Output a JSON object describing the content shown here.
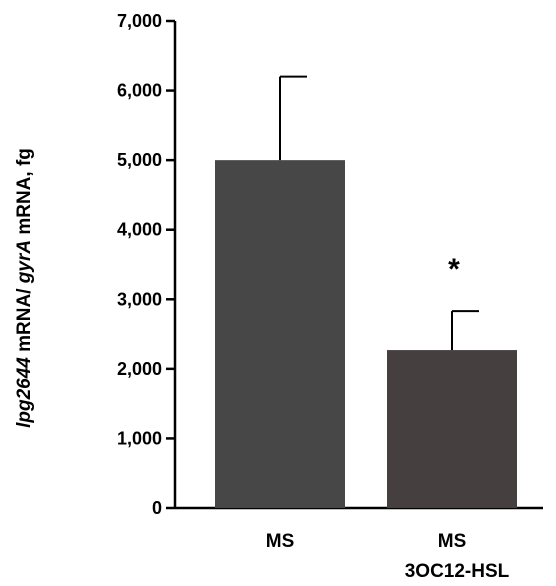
{
  "chart_data": {
    "type": "bar",
    "categories": [
      "MS",
      "MS 3OC12-HSL"
    ],
    "category_lines": [
      [
        "MS"
      ],
      [
        "MS",
        "3OC12-HSL"
      ]
    ],
    "values": [
      5000,
      2270
    ],
    "errors": [
      1200,
      560
    ],
    "significance": [
      "",
      "*"
    ],
    "ylim": [
      0,
      7000
    ],
    "yticks": [
      0,
      1000,
      2000,
      3000,
      4000,
      5000,
      6000,
      7000
    ],
    "ytick_labels": [
      "0",
      "1,000",
      "2,000",
      "3,000",
      "4,000",
      "5,000",
      "6,000",
      "7,000"
    ],
    "ylabel_parts": [
      {
        "text": "lpg2644",
        "italic": true
      },
      {
        "text": " mRNA/ ",
        "italic": false
      },
      {
        "text": "gyrA",
        "italic": true
      },
      {
        "text": " mRNA, fg",
        "italic": false
      }
    ],
    "xlabel": "",
    "title": "",
    "grid": false,
    "colors": [
      "#474747",
      "#453f3f"
    ],
    "axis_color": "#000000"
  }
}
